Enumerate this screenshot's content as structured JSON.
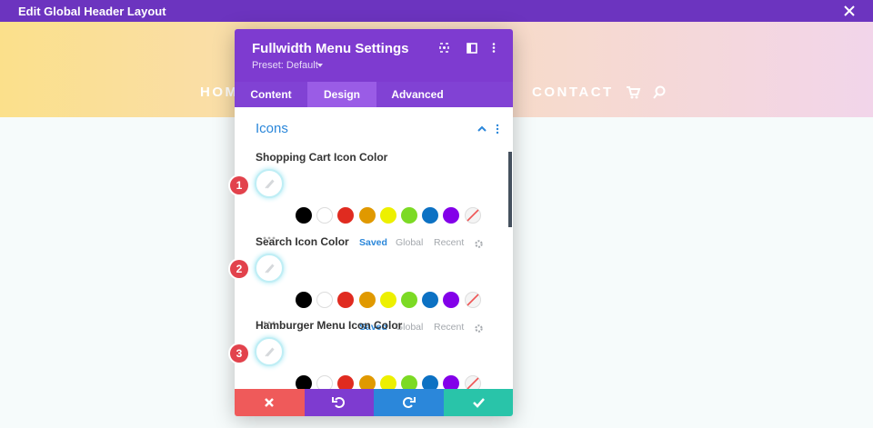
{
  "top_bar": {
    "title": "Edit Global Header Layout"
  },
  "background_nav": {
    "items": [
      "HOME",
      "CONTACT"
    ]
  },
  "modal": {
    "title": "Fullwidth Menu Settings",
    "preset": "Preset: Default",
    "tabs": [
      "Content",
      "Design",
      "Advanced"
    ],
    "active_tab": 1,
    "section_title": "Icons",
    "groups": [
      {
        "label": "Shopping Cart Icon Color",
        "badge": "1"
      },
      {
        "label": "Search Icon Color",
        "badge": "2"
      },
      {
        "label": "Hamburger Menu Icon Color",
        "badge": "3"
      }
    ],
    "palette_tabs": [
      "Saved",
      "Global",
      "Recent"
    ],
    "active_palette_tab": 0,
    "swatch_colors": [
      "#000000",
      "#ffffff",
      "#e02b20",
      "#e09900",
      "#edf000",
      "#7cda24",
      "#0c71c3",
      "#8300e9"
    ]
  }
}
